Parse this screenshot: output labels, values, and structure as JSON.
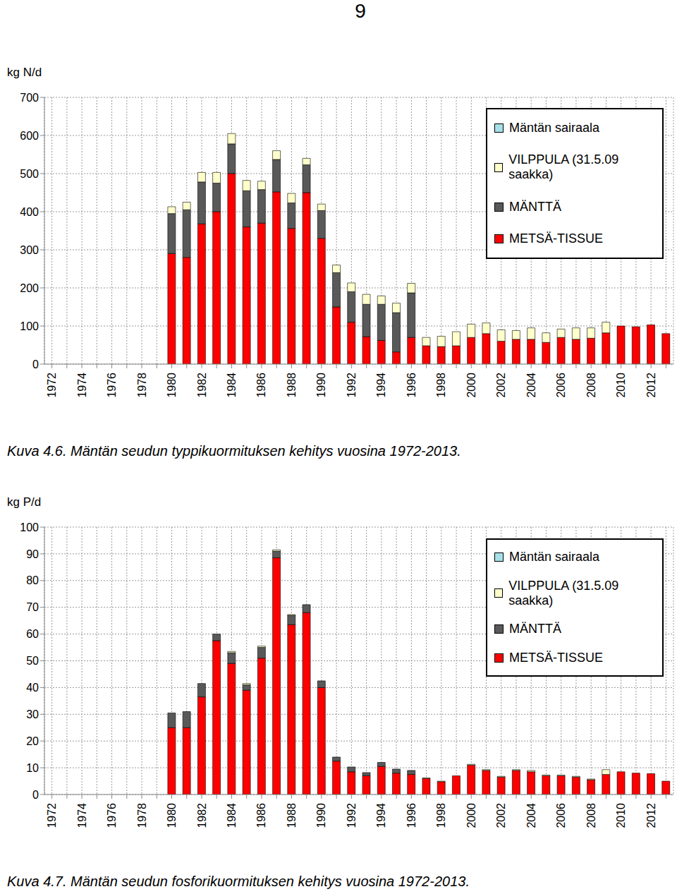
{
  "page_number": "9",
  "chart_data": [
    {
      "type": "bar",
      "title": "Kuva 4.6. Mäntän seudun typpikuormituksen kehitys vuosina 1972-2013.",
      "y_label": "kg N/d",
      "stacked": true,
      "grid": true,
      "legend": "upper right",
      "categories": [
        "1972",
        null,
        "1974",
        null,
        "1976",
        null,
        "1978",
        null,
        "1980",
        null,
        "1982",
        null,
        "1984",
        null,
        "1986",
        null,
        "1988",
        null,
        "1990",
        null,
        "1992",
        null,
        "1994",
        null,
        "1996",
        null,
        "1998",
        null,
        "2000",
        null,
        "2002",
        null,
        "2004",
        null,
        "2006",
        null,
        "2008",
        null,
        "2010",
        null,
        "2012",
        null
      ],
      "ylim": [
        0,
        700
      ],
      "yticks": [
        0,
        100,
        200,
        300,
        400,
        500,
        600,
        700
      ],
      "series": [
        {
          "name": "METSÄ-TISSUE",
          "color": "#ff0000",
          "values": [
            null,
            null,
            null,
            null,
            null,
            null,
            null,
            null,
            290,
            280,
            368,
            400,
            500,
            360,
            370,
            452,
            356,
            450,
            330,
            150,
            110,
            72,
            62,
            32,
            70,
            48,
            46,
            48,
            70,
            80,
            60,
            65,
            65,
            57,
            70,
            65,
            68,
            82,
            100,
            98,
            103,
            80
          ]
        },
        {
          "name": "MÄNTTÄ",
          "color": "#595959",
          "values": [
            null,
            null,
            null,
            null,
            null,
            null,
            null,
            null,
            105,
            125,
            110,
            75,
            78,
            95,
            88,
            85,
            67,
            73,
            73,
            90,
            80,
            85,
            95,
            103,
            117,
            0,
            0,
            0,
            0,
            0,
            0,
            0,
            0,
            0,
            0,
            0,
            0,
            0,
            0,
            0,
            0,
            0
          ]
        },
        {
          "name": "VILPPULA (31.5.09 saakka)",
          "color": "#ffffcc",
          "values": [
            null,
            null,
            null,
            null,
            null,
            null,
            null,
            null,
            18,
            20,
            25,
            28,
            27,
            27,
            22,
            23,
            25,
            17,
            17,
            20,
            23,
            26,
            22,
            25,
            25,
            22,
            27,
            37,
            35,
            28,
            30,
            23,
            30,
            25,
            22,
            30,
            27,
            28,
            0,
            0,
            0,
            0
          ]
        },
        {
          "name": "Mäntän sairaala",
          "color": "#a6e0e8",
          "values": [
            null,
            null,
            null,
            null,
            null,
            null,
            null,
            null,
            0,
            0,
            0,
            0,
            0,
            0,
            0,
            0,
            0,
            0,
            0,
            0,
            0,
            0,
            0,
            0,
            0,
            0,
            0,
            0,
            0,
            0,
            0,
            0,
            0,
            0,
            0,
            0,
            0,
            0,
            0,
            0,
            0,
            0
          ]
        }
      ]
    },
    {
      "type": "bar",
      "title": "Kuva 4.7. Mäntän seudun fosforikuormituksen kehitys vuosina 1972-2013.",
      "y_label": "kg P/d",
      "stacked": true,
      "grid": true,
      "legend": "upper right",
      "categories": [
        "1972",
        null,
        "1974",
        null,
        "1976",
        null,
        "1978",
        null,
        "1980",
        null,
        "1982",
        null,
        "1984",
        null,
        "1986",
        null,
        "1988",
        null,
        "1990",
        null,
        "1992",
        null,
        "1994",
        null,
        "1996",
        null,
        "1998",
        null,
        "2000",
        null,
        "2002",
        null,
        "2004",
        null,
        "2006",
        null,
        "2008",
        null,
        "2010",
        null,
        "2012",
        null
      ],
      "ylim": [
        0,
        100
      ],
      "yticks": [
        0,
        10,
        20,
        30,
        40,
        50,
        60,
        70,
        80,
        90,
        100
      ],
      "series": [
        {
          "name": "METSÄ-TISSUE",
          "color": "#ff0000",
          "values": [
            null,
            null,
            null,
            null,
            null,
            null,
            null,
            null,
            25,
            25,
            36.5,
            57.5,
            49,
            39,
            51,
            88.5,
            63.5,
            68,
            40,
            12.5,
            8.5,
            7,
            10.5,
            8,
            7.5,
            6,
            4.8,
            7,
            11,
            9,
            6.5,
            9,
            8.5,
            7,
            7,
            6.5,
            5.5,
            7.5,
            8.5,
            8,
            7.8,
            5
          ]
        },
        {
          "name": "MÄNTTÄ",
          "color": "#595959",
          "values": [
            null,
            null,
            null,
            null,
            null,
            null,
            null,
            null,
            5.5,
            6,
            5,
            2.5,
            4,
            2,
            4,
            2.5,
            3.5,
            3,
            2.5,
            1.5,
            1.8,
            1.2,
            1.5,
            1.5,
            1.5,
            0,
            0,
            0,
            0,
            0,
            0,
            0,
            0,
            0,
            0,
            0,
            0,
            0,
            0,
            0,
            0,
            0
          ]
        },
        {
          "name": "VILPPULA (31.5.09 saakka)",
          "color": "#ffffcc",
          "values": [
            null,
            null,
            null,
            null,
            null,
            null,
            null,
            null,
            0,
            0,
            0,
            0,
            0.5,
            0.5,
            0.5,
            0.5,
            0.3,
            0,
            0,
            0,
            0,
            0,
            0,
            0,
            0,
            0.2,
            0.2,
            0,
            0.3,
            0.3,
            0.3,
            0.3,
            0.5,
            0.3,
            0.3,
            0.3,
            0.3,
            1.8,
            0,
            0,
            0,
            0
          ]
        },
        {
          "name": "Mäntän sairaala",
          "color": "#a6e0e8",
          "values": [
            null,
            null,
            null,
            null,
            null,
            null,
            null,
            null,
            0,
            0,
            0,
            0,
            0,
            0,
            0,
            0,
            0,
            0,
            0,
            0,
            0,
            0,
            0,
            0,
            0,
            0,
            0,
            0,
            0,
            0,
            0,
            0,
            0,
            0,
            0,
            0,
            0,
            0,
            0,
            0,
            0,
            0
          ]
        }
      ]
    }
  ]
}
